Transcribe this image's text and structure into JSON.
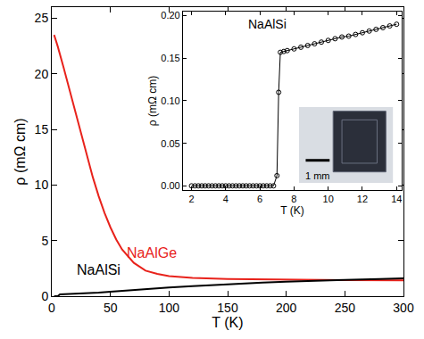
{
  "chart_data": [
    {
      "type": "line",
      "x_label": "T (K)",
      "y_label": "ρ (mΩ cm)",
      "xlim": [
        0,
        300
      ],
      "xticks": [
        0,
        50,
        100,
        150,
        200,
        250,
        300
      ],
      "ylim": [
        0,
        26
      ],
      "yticks": [
        0,
        5,
        10,
        15,
        20,
        25
      ],
      "series": [
        {
          "name": "NaAlGe",
          "color": "#e8221b",
          "line_style": "solid",
          "x": [
            2,
            5,
            10,
            15,
            20,
            25,
            30,
            35,
            40,
            45,
            50,
            55,
            60,
            70,
            80,
            90,
            100,
            120,
            150,
            200,
            250,
            300
          ],
          "values": [
            23.5,
            22.5,
            20.6,
            18.6,
            16.6,
            14.6,
            12.6,
            10.7,
            9.0,
            7.5,
            6.2,
            5.1,
            4.2,
            3.0,
            2.3,
            2.0,
            1.8,
            1.65,
            1.55,
            1.48,
            1.45,
            1.43
          ]
        },
        {
          "name": "NaAlSi",
          "color": "#000000",
          "line_style": "solid",
          "x": [
            2,
            5,
            7,
            10,
            20,
            30,
            40,
            50,
            60,
            80,
            100,
            120,
            150,
            180,
            200,
            220,
            250,
            280,
            300
          ],
          "values": [
            0,
            0,
            0.16,
            0.17,
            0.2,
            0.25,
            0.32,
            0.4,
            0.48,
            0.63,
            0.78,
            0.9,
            1.08,
            1.22,
            1.3,
            1.38,
            1.47,
            1.55,
            1.6
          ]
        }
      ]
    },
    {
      "type": "line",
      "title": "NaAlSi",
      "x_label": "T (K)",
      "y_label": "ρ (mΩ cm)",
      "xlim": [
        1.5,
        14.3
      ],
      "xticks": [
        2,
        4,
        6,
        8,
        10,
        12,
        14
      ],
      "ylim": [
        -0.005,
        0.205
      ],
      "yticks": [
        {
          "value": 0,
          "label": "0.00"
        },
        {
          "value": 0.05,
          "label": "0.05"
        },
        {
          "value": 0.1,
          "label": "0.10"
        },
        {
          "value": 0.15,
          "label": "0.15"
        },
        {
          "value": 0.2,
          "label": "0.20"
        }
      ],
      "annotations": [
        "1 mm"
      ],
      "series": [
        {
          "color": "#000000",
          "marker": "open_circle",
          "line_style": "solid",
          "x": [
            2.0,
            2.2,
            2.4,
            2.6,
            2.8,
            3.0,
            3.2,
            3.4,
            3.6,
            3.8,
            4.0,
            4.2,
            4.4,
            4.6,
            4.8,
            5.0,
            5.2,
            5.4,
            5.6,
            5.8,
            6.0,
            6.2,
            6.4,
            6.6,
            6.8,
            7.0,
            7.1,
            7.2,
            7.4,
            7.6,
            8.0,
            8.4,
            8.8,
            9.2,
            9.6,
            10.0,
            10.4,
            10.8,
            11.2,
            11.6,
            12.0,
            12.4,
            12.8,
            13.2,
            13.6,
            14.0
          ],
          "values": [
            0,
            0,
            0,
            0,
            0,
            0,
            0,
            0,
            0,
            0,
            0,
            0,
            0,
            0,
            0,
            0,
            0,
            0,
            0,
            0,
            0,
            0,
            0,
            0,
            0,
            0.012,
            0.11,
            0.157,
            0.158,
            0.159,
            0.161,
            0.163,
            0.165,
            0.167,
            0.169,
            0.171,
            0.173,
            0.175,
            0.176,
            0.178,
            0.18,
            0.182,
            0.184,
            0.186,
            0.188,
            0.19
          ]
        }
      ]
    }
  ]
}
